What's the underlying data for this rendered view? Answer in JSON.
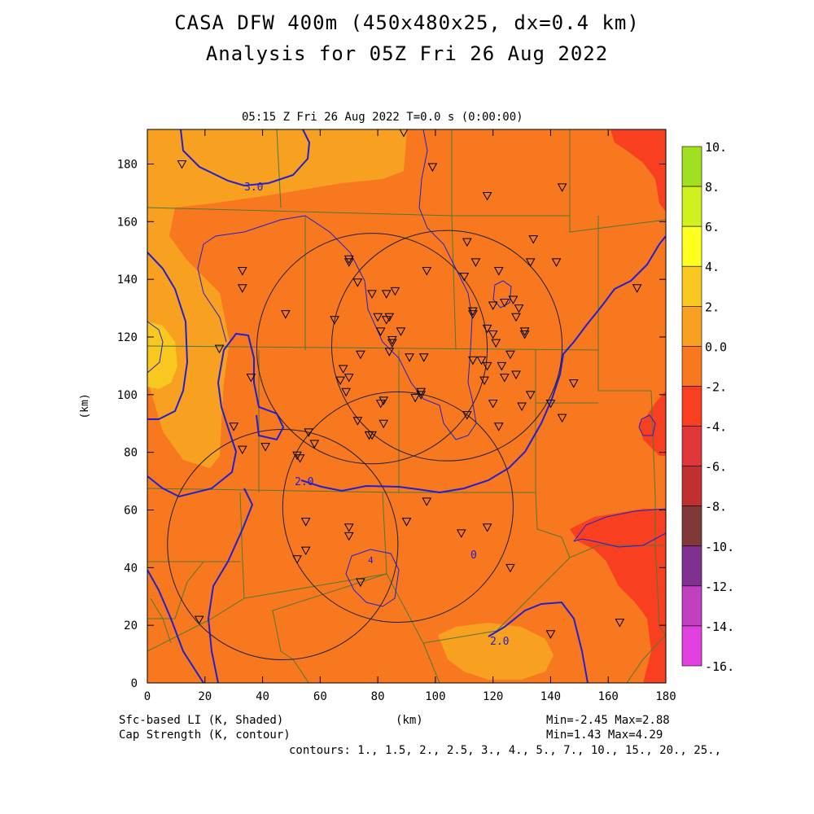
{
  "titles": {
    "line1": "CASA DFW 400m (450x480x25, dx=0.4 km)",
    "line2": "Analysis for 05Z Fri 26 Aug 2022",
    "subtitle": "05:15 Z Fri 26 Aug 2022   T=0.0 s (0:00:00)"
  },
  "axes": {
    "x_ticks": [
      "0",
      "20",
      "40",
      "60",
      "80",
      "100",
      "120",
      "140",
      "160",
      "180"
    ],
    "y_ticks": [
      "0",
      "20",
      "40",
      "60",
      "80",
      "100",
      "120",
      "140",
      "160",
      "180"
    ],
    "xlabel": "(km)",
    "ylabel": "(km)",
    "xlim": [
      0,
      180
    ],
    "ylim": [
      0,
      192
    ]
  },
  "colorbar": {
    "labels": [
      "10.",
      "8.",
      "6.",
      "4.",
      "2.",
      "0.0",
      "-2.",
      "-4.",
      "-6.",
      "-8.",
      "-10.",
      "-12.",
      "-14.",
      "-16."
    ],
    "colors": [
      "#a0e020",
      "#d0f020",
      "#ffff20",
      "#f8c820",
      "#f8a020",
      "#f87820",
      "#f84020",
      "#e03838",
      "#c03030",
      "#803838",
      "#803090",
      "#c040c0",
      "#e040e0"
    ]
  },
  "footer": {
    "left1": "Sfc-based LI (K, Shaded)",
    "left2": "Cap Strength (K, contour)",
    "center": "(km)",
    "right1": "Min=-2.45 Max=2.88",
    "right2": "Min=1.43 Max=4.29",
    "contours": "contours: 1., 1.5, 2., 2.5, 3., 4., 5., 7., 10., 15., 20., 25.,"
  },
  "contour_labels": [
    "3.0",
    "2.0",
    "2.0",
    "4",
    "0"
  ],
  "map": {
    "radars_km": [
      {
        "x": 78,
        "y": 116
      },
      {
        "x": 104,
        "y": 117
      },
      {
        "x": 47,
        "y": 48
      },
      {
        "x": 87,
        "y": 61
      }
    ],
    "radar_radius_km": 40,
    "stations_km": [
      [
        12,
        180
      ],
      [
        33,
        143
      ],
      [
        33,
        137
      ],
      [
        48,
        128
      ],
      [
        70,
        147
      ],
      [
        70,
        146
      ],
      [
        73,
        139
      ],
      [
        83,
        135
      ],
      [
        86,
        136
      ],
      [
        78,
        135
      ],
      [
        65,
        126
      ],
      [
        84,
        127
      ],
      [
        83,
        126
      ],
      [
        80,
        127
      ],
      [
        81,
        122
      ],
      [
        88,
        122
      ],
      [
        85,
        119
      ],
      [
        85,
        118
      ],
      [
        84,
        115
      ],
      [
        74,
        114
      ],
      [
        68,
        109
      ],
      [
        70,
        106
      ],
      [
        67,
        105
      ],
      [
        69,
        101
      ],
      [
        81,
        97
      ],
      [
        82,
        98
      ],
      [
        82,
        90
      ],
      [
        73,
        91
      ],
      [
        77,
        86
      ],
      [
        78,
        86
      ],
      [
        93,
        99
      ],
      [
        95,
        101
      ],
      [
        95,
        100
      ],
      [
        91,
        113
      ],
      [
        96,
        113
      ],
      [
        117,
        105
      ],
      [
        118,
        110
      ],
      [
        113,
        112
      ],
      [
        116,
        112
      ],
      [
        123,
        110
      ],
      [
        124,
        106
      ],
      [
        126,
        114
      ],
      [
        128,
        107
      ],
      [
        120,
        97
      ],
      [
        122,
        89
      ],
      [
        130,
        96
      ],
      [
        133,
        100
      ],
      [
        140,
        97
      ],
      [
        144,
        92
      ],
      [
        148,
        104
      ],
      [
        111,
        93
      ],
      [
        113,
        128
      ],
      [
        113,
        129
      ],
      [
        110,
        141
      ],
      [
        114,
        146
      ],
      [
        111,
        153
      ],
      [
        97,
        143
      ],
      [
        99,
        179
      ],
      [
        118,
        169
      ],
      [
        144,
        172
      ],
      [
        134,
        154
      ],
      [
        133,
        146
      ],
      [
        142,
        146
      ],
      [
        122,
        143
      ],
      [
        124,
        132
      ],
      [
        120,
        131
      ],
      [
        127,
        133
      ],
      [
        129,
        130
      ],
      [
        128,
        127
      ],
      [
        131,
        122
      ],
      [
        131,
        121
      ],
      [
        120,
        121
      ],
      [
        118,
        123
      ],
      [
        121,
        118
      ],
      [
        18,
        22
      ],
      [
        25,
        116
      ],
      [
        36,
        106
      ],
      [
        41,
        82
      ],
      [
        30,
        89
      ],
      [
        33,
        81
      ],
      [
        53,
        78
      ],
      [
        56,
        87
      ],
      [
        52,
        79
      ],
      [
        58,
        83
      ],
      [
        52,
        43
      ],
      [
        55,
        46
      ],
      [
        55,
        56
      ],
      [
        70,
        54
      ],
      [
        70,
        51
      ],
      [
        74,
        35
      ],
      [
        90,
        56
      ],
      [
        97,
        63
      ],
      [
        118,
        54
      ],
      [
        109,
        52
      ],
      [
        126,
        40
      ],
      [
        140,
        17
      ],
      [
        170,
        137
      ],
      [
        164,
        21
      ],
      [
        89,
        191
      ]
    ]
  }
}
